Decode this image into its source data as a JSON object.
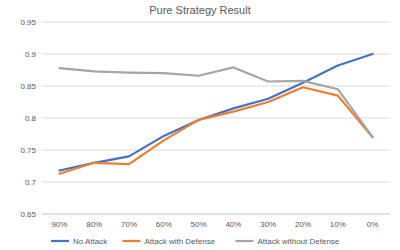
{
  "chart_data": {
    "type": "line",
    "title": "Pure Strategy Result",
    "categories": [
      "90%",
      "80%",
      "70%",
      "60%",
      "50%",
      "40%",
      "30%",
      "20%",
      "10%",
      "0%"
    ],
    "series": [
      {
        "name": "No Attack",
        "color": "#4472c4",
        "values": [
          0.718,
          0.73,
          0.74,
          0.772,
          0.797,
          0.815,
          0.83,
          0.855,
          0.882,
          0.9
        ]
      },
      {
        "name": "Attack with Defense",
        "color": "#ed7d31",
        "values": [
          0.713,
          0.73,
          0.728,
          0.765,
          0.797,
          0.81,
          0.825,
          0.848,
          0.835,
          0.77
        ]
      },
      {
        "name": "Attack without Defense",
        "color": "#a5a5a5",
        "values": [
          0.878,
          0.873,
          0.871,
          0.87,
          0.866,
          0.879,
          0.857,
          0.858,
          0.845,
          0.77
        ]
      }
    ],
    "ylim": [
      0.65,
      0.95
    ],
    "yticks": [
      0.65,
      0.7,
      0.75,
      0.8,
      0.85,
      0.9,
      0.95
    ],
    "grid": true,
    "legend": "bottom"
  }
}
